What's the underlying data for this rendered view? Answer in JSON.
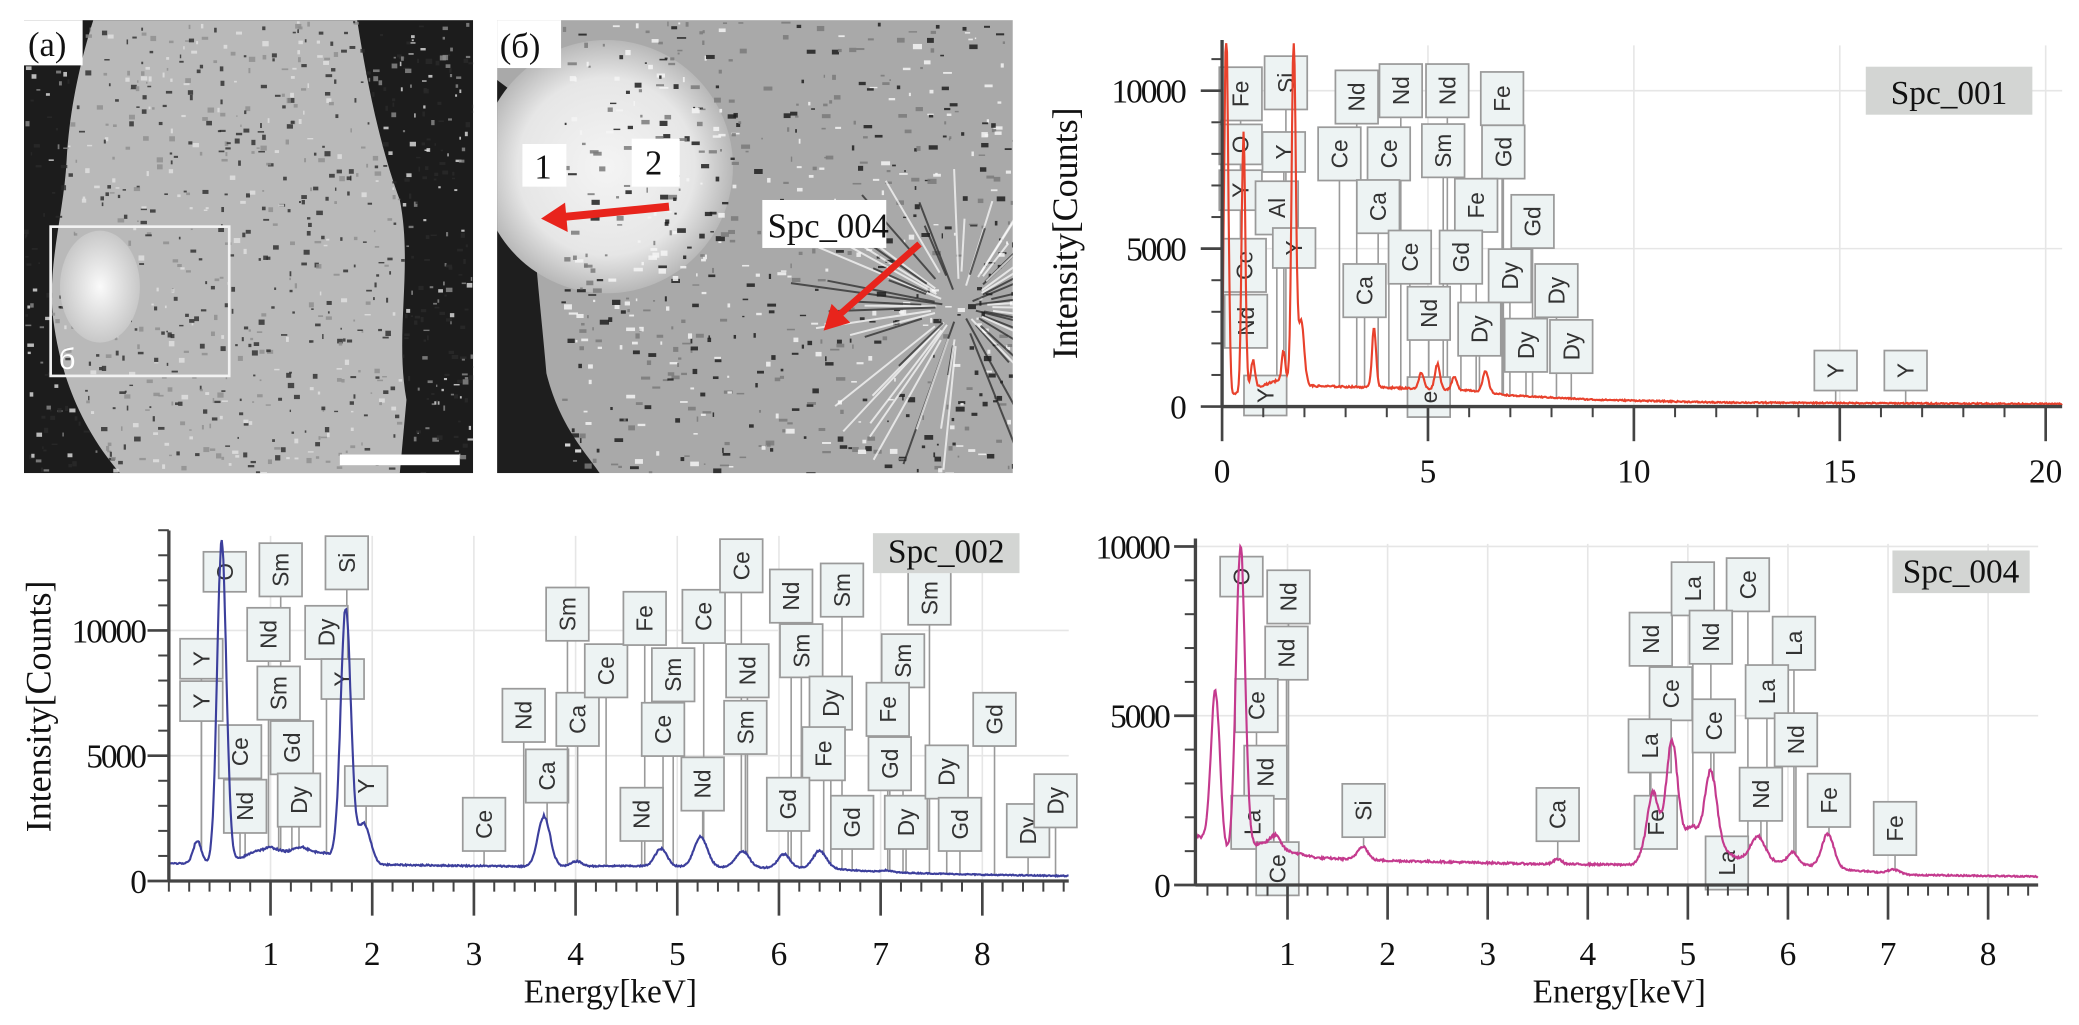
{
  "figure": {
    "panel_a": {
      "label": "(a)",
      "inset_label": "б"
    },
    "panel_b": {
      "label": "(б)",
      "point1": "1",
      "point2": "2",
      "spot_label": "Spc_004"
    }
  },
  "chart_data": [
    {
      "id": "spc001",
      "type": "line",
      "title": "Spc_001",
      "xlabel": "",
      "ylabel": "Intensity[Counts]",
      "xlim": [
        0,
        20.4
      ],
      "ylim": [
        0,
        11500
      ],
      "xticks": [
        0,
        5,
        10,
        15,
        20
      ],
      "yticks": [
        0,
        5000,
        10000
      ],
      "grid": true,
      "color": "#e8412c",
      "baseline": [
        [
          0,
          300
        ],
        [
          0.6,
          500
        ],
        [
          1.5,
          900
        ],
        [
          2.2,
          650
        ],
        [
          4,
          600
        ],
        [
          6,
          520
        ],
        [
          7,
          350
        ],
        [
          9,
          220
        ],
        [
          12,
          130
        ],
        [
          20.4,
          80
        ]
      ],
      "peaks": [
        [
          0.1,
          11800,
          0.05
        ],
        [
          0.52,
          8200,
          0.045
        ],
        [
          0.75,
          900,
          0.05
        ],
        [
          1.49,
          900,
          0.04
        ],
        [
          1.74,
          10800,
          0.05
        ],
        [
          1.92,
          2000,
          0.07
        ],
        [
          3.69,
          1900,
          0.05
        ],
        [
          4.84,
          500,
          0.06
        ],
        [
          5.23,
          800,
          0.06
        ],
        [
          5.64,
          400,
          0.06
        ],
        [
          6.4,
          650,
          0.07
        ]
      ],
      "labels": [
        {
          "text": "Fe",
          "e": 0.45,
          "c": 9900
        },
        {
          "text": "O",
          "e": 0.45,
          "c": 8300
        },
        {
          "text": "Y",
          "e": 0.45,
          "c": 6850
        },
        {
          "text": "Si",
          "e": 1.55,
          "c": 10250
        },
        {
          "text": "Y",
          "e": 1.5,
          "c": 8060
        },
        {
          "text": "Al",
          "e": 1.33,
          "c": 6290
        },
        {
          "text": "Y",
          "e": 1.75,
          "c": 5020
        },
        {
          "text": "Ce",
          "e": 0.55,
          "c": 4470
        },
        {
          "text": "Nd",
          "e": 0.58,
          "c": 2700
        },
        {
          "text": "Y",
          "e": 1.05,
          "c": 350
        },
        {
          "text": "Nd",
          "e": 3.27,
          "c": 9800
        },
        {
          "text": "Nd",
          "e": 4.34,
          "c": 10000
        },
        {
          "text": "Nd",
          "e": 5.47,
          "c": 10000
        },
        {
          "text": "Fe",
          "e": 6.8,
          "c": 9750
        },
        {
          "text": "Ce",
          "e": 2.85,
          "c": 8000
        },
        {
          "text": "Ce",
          "e": 4.05,
          "c": 8000
        },
        {
          "text": "Sm",
          "e": 5.37,
          "c": 8100
        },
        {
          "text": "Gd",
          "e": 6.83,
          "c": 8060
        },
        {
          "text": "Ca",
          "e": 3.79,
          "c": 6330
        },
        {
          "text": "Fe",
          "e": 6.17,
          "c": 6370
        },
        {
          "text": "Gd",
          "e": 7.54,
          "c": 5860
        },
        {
          "text": "Ce",
          "e": 4.56,
          "c": 4730
        },
        {
          "text": "Gd",
          "e": 5.8,
          "c": 4730
        },
        {
          "text": "Dy",
          "e": 6.99,
          "c": 4140
        },
        {
          "text": "Dy",
          "e": 8.12,
          "c": 3670
        },
        {
          "text": "Ca",
          "e": 3.46,
          "c": 3670
        },
        {
          "text": "Nd",
          "e": 5.02,
          "c": 2950
        },
        {
          "text": "Dy",
          "e": 6.25,
          "c": 2450
        },
        {
          "text": "Dy",
          "e": 7.38,
          "c": 1940
        },
        {
          "text": "Dy",
          "e": 8.48,
          "c": 1900
        },
        {
          "text": "e",
          "e": 5.02,
          "c": 300
        },
        {
          "text": "Y",
          "e": 14.9,
          "c": 1140
        },
        {
          "text": "Y",
          "e": 16.6,
          "c": 1140
        }
      ]
    },
    {
      "id": "spc002",
      "type": "line",
      "title": "Spc_002",
      "xlabel": "Energy[keV]",
      "ylabel": "Intensity[Counts]",
      "xlim": [
        0,
        8.85
      ],
      "ylim": [
        0,
        14000
      ],
      "xticks": [
        1,
        2,
        3,
        4,
        5,
        6,
        7,
        8
      ],
      "yticks": [
        0,
        5000,
        10000
      ],
      "grid": true,
      "color": "#3c3f9c",
      "baseline": [
        [
          -0.06,
          700
        ],
        [
          0.4,
          700
        ],
        [
          0.7,
          900
        ],
        [
          0.85,
          1200
        ],
        [
          1.5,
          1150
        ],
        [
          1.62,
          1000
        ],
        [
          2.1,
          650
        ],
        [
          3.5,
          580
        ],
        [
          4.5,
          600
        ],
        [
          6.5,
          500
        ],
        [
          7,
          350
        ],
        [
          8,
          250
        ],
        [
          8.85,
          200
        ]
      ],
      "peaks": [
        [
          0.28,
          900,
          0.04
        ],
        [
          0.52,
          12800,
          0.045
        ],
        [
          1.0,
          150,
          0.06
        ],
        [
          1.3,
          200,
          0.06
        ],
        [
          1.74,
          10000,
          0.05
        ],
        [
          1.92,
          1500,
          0.06
        ],
        [
          3.69,
          2000,
          0.06
        ],
        [
          4.01,
          200,
          0.05
        ],
        [
          4.84,
          700,
          0.06
        ],
        [
          5.23,
          1200,
          0.065
        ],
        [
          5.64,
          650,
          0.065
        ],
        [
          6.05,
          550,
          0.06
        ],
        [
          6.4,
          700,
          0.065
        ],
        [
          7.05,
          80,
          0.06
        ]
      ],
      "labels": [
        {
          "text": "O",
          "e": 0.55,
          "c": 12340
        },
        {
          "text": "Sm",
          "e": 1.1,
          "c": 12420
        },
        {
          "text": "Si",
          "e": 1.75,
          "c": 12700
        },
        {
          "text": "Nd",
          "e": 0.98,
          "c": 9840
        },
        {
          "text": "Dy",
          "e": 1.55,
          "c": 9920
        },
        {
          "text": "Y",
          "e": 0.32,
          "c": 8870
        },
        {
          "text": "Y",
          "e": 0.32,
          "c": 7180
        },
        {
          "text": "Y",
          "e": 1.71,
          "c": 8060
        },
        {
          "text": "Sm",
          "e": 1.08,
          "c": 7500
        },
        {
          "text": "Ce",
          "e": 0.7,
          "c": 5160
        },
        {
          "text": "Gd",
          "e": 1.21,
          "c": 5320
        },
        {
          "text": "Y",
          "e": 1.94,
          "c": 3790
        },
        {
          "text": "Nd",
          "e": 0.75,
          "c": 2980
        },
        {
          "text": "Dy",
          "e": 1.28,
          "c": 3230
        },
        {
          "text": "Ce",
          "e": 3.1,
          "c": 2260
        },
        {
          "text": "Nd",
          "e": 3.49,
          "c": 6610
        },
        {
          "text": "Ca",
          "e": 3.72,
          "c": 4190
        },
        {
          "text": "Sm",
          "e": 3.92,
          "c": 10650
        },
        {
          "text": "Ca",
          "e": 4.02,
          "c": 6450
        },
        {
          "text": "Ce",
          "e": 4.3,
          "c": 8390
        },
        {
          "text": "Fe",
          "e": 4.68,
          "c": 10480
        },
        {
          "text": "Sm",
          "e": 4.96,
          "c": 8230
        },
        {
          "text": "Ce",
          "e": 4.86,
          "c": 6050
        },
        {
          "text": "Ce",
          "e": 5.26,
          "c": 10560
        },
        {
          "text": "Nd",
          "e": 4.65,
          "c": 2660
        },
        {
          "text": "Nd",
          "e": 5.25,
          "c": 3870
        },
        {
          "text": "Ce",
          "e": 5.63,
          "c": 12580
        },
        {
          "text": "Nd",
          "e": 5.69,
          "c": 8390
        },
        {
          "text": "Sm",
          "e": 5.67,
          "c": 6130
        },
        {
          "text": "Nd",
          "e": 6.12,
          "c": 11370
        },
        {
          "text": "Sm",
          "e": 6.22,
          "c": 9190
        },
        {
          "text": "Sm",
          "e": 6.62,
          "c": 11610
        },
        {
          "text": "Dy",
          "e": 6.51,
          "c": 7100
        },
        {
          "text": "Fe",
          "e": 6.44,
          "c": 5080
        },
        {
          "text": "Gd",
          "e": 6.09,
          "c": 3060
        },
        {
          "text": "Gd",
          "e": 6.72,
          "c": 2340
        },
        {
          "text": "Sm",
          "e": 7.48,
          "c": 11290
        },
        {
          "text": "Sm",
          "e": 7.22,
          "c": 8790
        },
        {
          "text": "Fe",
          "e": 7.07,
          "c": 6850
        },
        {
          "text": "Gd",
          "e": 7.09,
          "c": 4680
        },
        {
          "text": "Dy",
          "e": 7.25,
          "c": 2340
        },
        {
          "text": "Dy",
          "e": 7.65,
          "c": 4350
        },
        {
          "text": "Gd",
          "e": 7.78,
          "c": 2260
        },
        {
          "text": "Gd",
          "e": 8.12,
          "c": 6450
        },
        {
          "text": "Dy",
          "e": 8.45,
          "c": 2010
        },
        {
          "text": "Dy",
          "e": 8.72,
          "c": 3200
        }
      ]
    },
    {
      "id": "spc004",
      "type": "line",
      "title": "Spc_004",
      "xlabel": "Energy[keV]",
      "ylabel": "",
      "xlim": [
        0.08,
        8.5
      ],
      "ylim": [
        0,
        10000
      ],
      "xticks": [
        1,
        2,
        3,
        4,
        5,
        6,
        7,
        8
      ],
      "yticks": [
        0,
        5000,
        10000
      ],
      "grid": true,
      "color": "#c43a8e",
      "baseline": [
        [
          0.08,
          1500
        ],
        [
          0.4,
          900
        ],
        [
          0.75,
          1250
        ],
        [
          1.0,
          1000
        ],
        [
          1.3,
          800
        ],
        [
          2.0,
          720
        ],
        [
          3.5,
          620
        ],
        [
          4.45,
          600
        ],
        [
          4.55,
          900
        ],
        [
          5.0,
          1500
        ],
        [
          5.5,
          800
        ],
        [
          6.6,
          450
        ],
        [
          7.2,
          300
        ],
        [
          8.5,
          250
        ]
      ],
      "peaks": [
        [
          0.28,
          4600,
          0.045
        ],
        [
          0.53,
          9000,
          0.045
        ],
        [
          0.88,
          350,
          0.05
        ],
        [
          1.75,
          400,
          0.05
        ],
        [
          3.7,
          150,
          0.04
        ],
        [
          4.65,
          1700,
          0.055
        ],
        [
          4.84,
          3000,
          0.055
        ],
        [
          5.05,
          300,
          0.04
        ],
        [
          5.23,
          2200,
          0.06
        ],
        [
          5.7,
          700,
          0.07
        ],
        [
          6.05,
          350,
          0.05
        ],
        [
          6.4,
          1000,
          0.06
        ],
        [
          7.06,
          120,
          0.06
        ]
      ],
      "labels": [
        {
          "text": "O",
          "e": 0.54,
          "c": 9110
        },
        {
          "text": "Nd",
          "e": 1.01,
          "c": 8510
        },
        {
          "text": "Nd",
          "e": 0.99,
          "c": 6850
        },
        {
          "text": "Ce",
          "e": 0.69,
          "c": 5300
        },
        {
          "text": "Nd",
          "e": 0.78,
          "c": 3330
        },
        {
          "text": "La",
          "e": 0.65,
          "c": 1850
        },
        {
          "text": "Ce",
          "e": 0.9,
          "c": 480
        },
        {
          "text": "Si",
          "e": 1.76,
          "c": 2200
        },
        {
          "text": "Ca",
          "e": 3.7,
          "c": 2080
        },
        {
          "text": "Nd",
          "e": 4.63,
          "c": 7260
        },
        {
          "text": "La",
          "e": 5.05,
          "c": 8750
        },
        {
          "text": "Ce",
          "e": 5.6,
          "c": 8870
        },
        {
          "text": "Nd",
          "e": 5.23,
          "c": 7320
        },
        {
          "text": "La",
          "e": 6.06,
          "c": 7140
        },
        {
          "text": "Ce",
          "e": 4.83,
          "c": 5650
        },
        {
          "text": "La",
          "e": 5.79,
          "c": 5710
        },
        {
          "text": "La",
          "e": 4.62,
          "c": 4110
        },
        {
          "text": "Ce",
          "e": 5.26,
          "c": 4700
        },
        {
          "text": "Nd",
          "e": 6.08,
          "c": 4290
        },
        {
          "text": "Fe",
          "e": 4.68,
          "c": 1850
        },
        {
          "text": "Nd",
          "e": 5.73,
          "c": 2680
        },
        {
          "text": "Fe",
          "e": 6.41,
          "c": 2500
        },
        {
          "text": "Fe",
          "e": 7.07,
          "c": 1670
        },
        {
          "text": "La",
          "e": 5.39,
          "c": 650
        }
      ]
    }
  ]
}
